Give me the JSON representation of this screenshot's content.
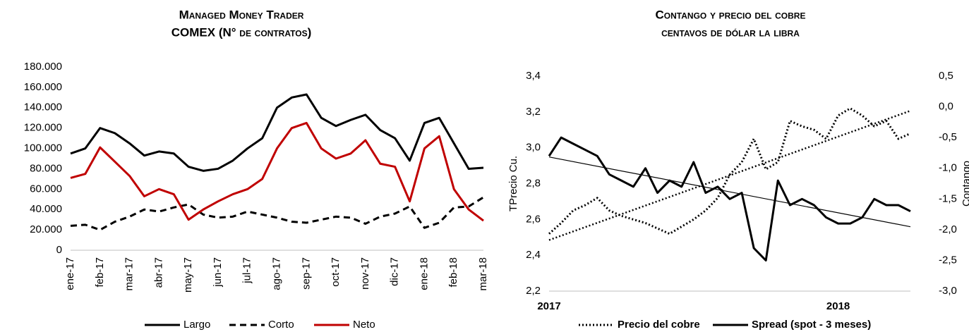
{
  "chart_data": [
    {
      "type": "line",
      "title": [
        "Managed Money Trader",
        "COMEX (N° de contratos)"
      ],
      "categories": [
        "ene-17",
        null,
        "feb-17",
        null,
        "mar-17",
        null,
        "abr-17",
        null,
        "may-17",
        null,
        "jun-17",
        null,
        "jul-17",
        null,
        "ago-17",
        null,
        "sep-17",
        null,
        "oct-17",
        null,
        "nov-17",
        null,
        "dic-17",
        null,
        "ene-18",
        null,
        "feb-18",
        null,
        "mar-18"
      ],
      "series": [
        {
          "name": "Largo",
          "color": "#000000",
          "style": "solid",
          "values": [
            95000,
            100000,
            120000,
            115000,
            105000,
            93000,
            97000,
            95000,
            82000,
            78000,
            80000,
            88000,
            100000,
            110000,
            140000,
            150000,
            153000,
            130000,
            122000,
            128000,
            133000,
            118000,
            110000,
            88000,
            125000,
            130000,
            105000,
            80000,
            81000
          ]
        },
        {
          "name": "Corto",
          "color": "#000000",
          "style": "dashed",
          "values": [
            24000,
            25000,
            20000,
            28000,
            33000,
            40000,
            38000,
            42000,
            45000,
            35000,
            32000,
            33000,
            38000,
            35000,
            32000,
            28000,
            27000,
            30000,
            33000,
            32000,
            26000,
            33000,
            36000,
            43000,
            22000,
            27000,
            42000,
            43000,
            52000
          ]
        },
        {
          "name": "Neto",
          "color": "#c00000",
          "style": "solid",
          "values": [
            71000,
            75000,
            101000,
            87000,
            73000,
            53000,
            60000,
            55000,
            30000,
            40000,
            48000,
            55000,
            60000,
            70000,
            100000,
            120000,
            125000,
            100000,
            90000,
            95000,
            108000,
            85000,
            82000,
            48000,
            100000,
            112000,
            60000,
            40000,
            29000
          ]
        }
      ],
      "ylim": [
        0,
        180000
      ],
      "yticks": [
        0,
        {
          "value": 20000,
          "label": "20.000"
        },
        {
          "value": 40000,
          "label": "40.000"
        },
        {
          "value": 60000,
          "label": "60.000"
        },
        {
          "value": 80000,
          "label": "80.000"
        },
        {
          "value": 100000,
          "label": "100.000"
        },
        {
          "value": 120000,
          "label": "120.000"
        },
        {
          "value": 140000,
          "label": "140.000"
        },
        {
          "value": 160000,
          "label": "160.000"
        },
        {
          "value": 180000,
          "label": "180.000"
        }
      ]
    },
    {
      "type": "line",
      "title": [
        "Contango y precio del cobre",
        "centavos de dólar la libra"
      ],
      "ylabel": "TPrecio Cu.",
      "y2label": "Contango",
      "categories": [
        "2017",
        null,
        null,
        null,
        null,
        null,
        null,
        null,
        null,
        null,
        null,
        null,
        null,
        null,
        null,
        null,
        null,
        null,
        null,
        null,
        null,
        null,
        null,
        null,
        "2018",
        null,
        null,
        null,
        null,
        null,
        null
      ],
      "series": [
        {
          "name": "Precio del cobre",
          "color": "#000000",
          "style": "dotted",
          "trendline": true,
          "values": [
            2.52,
            2.58,
            2.65,
            2.68,
            2.72,
            2.65,
            2.62,
            2.6,
            2.58,
            2.55,
            2.52,
            2.56,
            2.6,
            2.65,
            2.72,
            2.85,
            2.92,
            3.05,
            2.88,
            2.92,
            3.15,
            3.12,
            3.1,
            3.05,
            3.18,
            3.22,
            3.18,
            3.12,
            3.15,
            3.05,
            3.08
          ]
        },
        {
          "name": "Spread (spot - 3 meses)",
          "color": "#000000",
          "style": "solid",
          "axis": "y2",
          "trendline": true,
          "values": [
            -0.8,
            -0.5,
            -0.6,
            -0.7,
            -0.8,
            -1.1,
            -1.2,
            -1.3,
            -1.0,
            -1.4,
            -1.2,
            -1.3,
            -0.9,
            -1.4,
            -1.3,
            -1.5,
            -1.4,
            -2.3,
            -2.5,
            -1.2,
            -1.6,
            -1.5,
            -1.6,
            -1.8,
            -1.9,
            -1.9,
            -1.8,
            -1.5,
            -1.6,
            -1.6,
            -1.7
          ]
        }
      ],
      "ylim": [
        2.2,
        3.4
      ],
      "yticks": [
        {
          "value": 2.2,
          "label": "2,2"
        },
        {
          "value": 2.4,
          "label": "2,4"
        },
        {
          "value": 2.6,
          "label": "2,6"
        },
        {
          "value": 2.8,
          "label": "2,8"
        },
        {
          "value": 3.0,
          "label": "3,0"
        },
        {
          "value": 3.2,
          "label": "3,2"
        },
        {
          "value": 3.4,
          "label": "3,4"
        }
      ],
      "y2lim": [
        -3.0,
        0.5
      ],
      "y2ticks": [
        {
          "value": -3.0,
          "label": "-3,0"
        },
        {
          "value": -2.5,
          "label": "-2,5"
        },
        {
          "value": -2.0,
          "label": "-2,0"
        },
        {
          "value": -1.5,
          "label": "-1,5"
        },
        {
          "value": -1.0,
          "label": "-1,0"
        },
        {
          "value": -0.5,
          "label": "-0,5"
        },
        {
          "value": 0.0,
          "label": "0,0"
        },
        {
          "value": 0.5,
          "label": "0,5"
        }
      ]
    }
  ]
}
